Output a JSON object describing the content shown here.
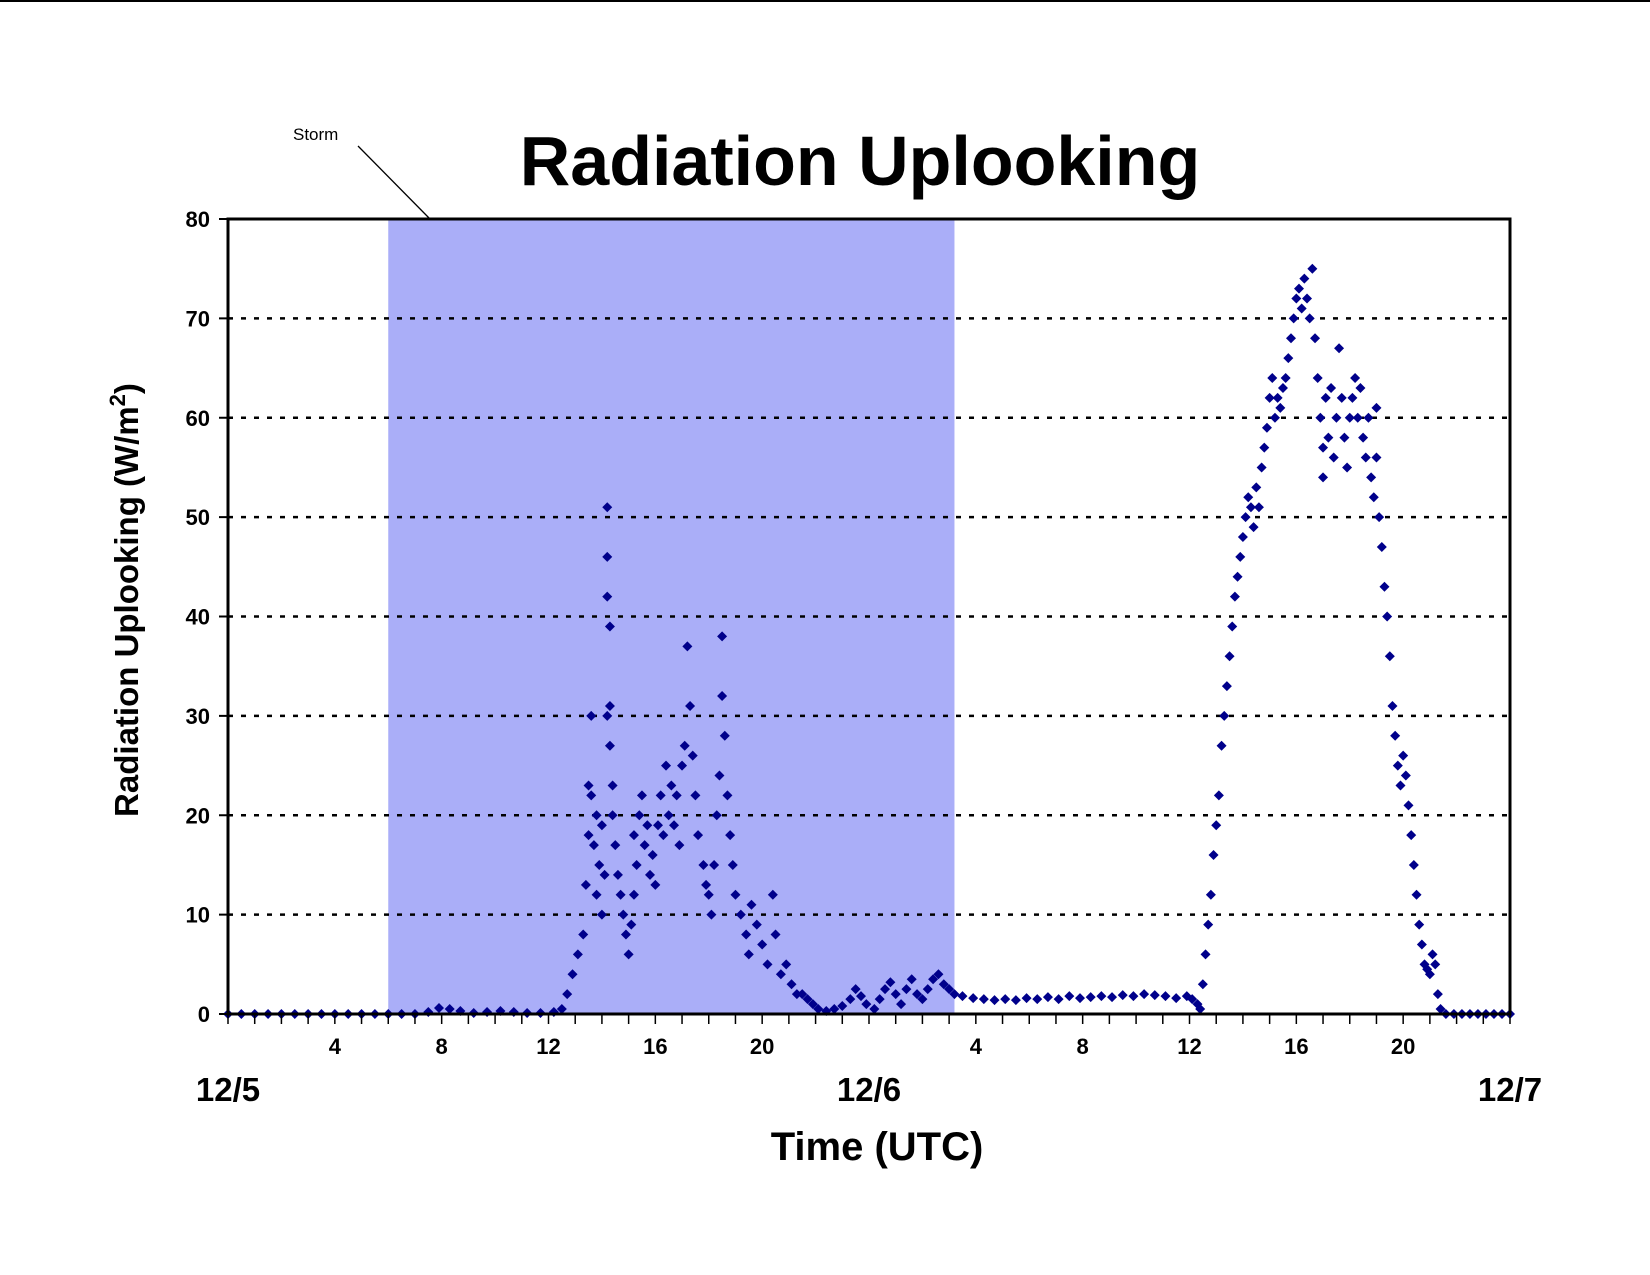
{
  "chart_data": {
    "type": "scatter",
    "title": "Radiation Uplooking",
    "xlabel": "Time (UTC)",
    "ylabel_prefix": "Radiation Uplooking (W/m",
    "ylabel_sup": "2",
    "ylabel_suffix": ")",
    "xlim": [
      0,
      48
    ],
    "ylim": [
      0,
      80
    ],
    "y_ticks": [
      0,
      10,
      20,
      30,
      40,
      50,
      60,
      70,
      80
    ],
    "y_tick_labels": [
      "0",
      "10",
      "20",
      "30",
      "40",
      "50",
      "60",
      "70",
      "80"
    ],
    "gridlines": "horizontal dotted",
    "x_hour_ticks": [
      4,
      8,
      12,
      16,
      20,
      28,
      32,
      36,
      40,
      44
    ],
    "x_hour_labels": [
      "4",
      "8",
      "12",
      "16",
      "20",
      "4",
      "8",
      "12",
      "16",
      "20"
    ],
    "x_date_ticks": [
      0,
      24,
      48
    ],
    "x_date_labels": [
      "12/5",
      "12/6",
      "12/7"
    ],
    "marker_color": "#00008B",
    "storm_band": {
      "label": "Storm",
      "x_start": 6.0,
      "x_end": 27.2,
      "color": "#AAAEF8"
    },
    "series": [
      {
        "marker": "diamond",
        "points": [
          [
            0.0,
            0
          ],
          [
            0.5,
            0
          ],
          [
            1.0,
            0
          ],
          [
            1.5,
            0
          ],
          [
            2.0,
            0
          ],
          [
            2.5,
            0
          ],
          [
            3.0,
            0
          ],
          [
            3.5,
            0
          ],
          [
            4.0,
            0
          ],
          [
            4.5,
            0
          ],
          [
            5.0,
            0
          ],
          [
            5.5,
            0
          ],
          [
            6.0,
            0
          ],
          [
            6.5,
            0
          ],
          [
            7.0,
            0
          ],
          [
            7.5,
            0.2
          ],
          [
            7.9,
            0.6
          ],
          [
            8.3,
            0.5
          ],
          [
            8.7,
            0.3
          ],
          [
            9.2,
            0.1
          ],
          [
            9.7,
            0.2
          ],
          [
            10.2,
            0.3
          ],
          [
            10.7,
            0.2
          ],
          [
            11.2,
            0.1
          ],
          [
            11.7,
            0.1
          ],
          [
            12.2,
            0.2
          ],
          [
            12.5,
            0.5
          ],
          [
            12.7,
            2
          ],
          [
            12.9,
            4
          ],
          [
            13.1,
            6
          ],
          [
            13.3,
            8
          ],
          [
            13.4,
            13
          ],
          [
            13.5,
            18
          ],
          [
            13.5,
            23
          ],
          [
            13.6,
            30
          ],
          [
            13.6,
            22
          ],
          [
            13.7,
            17
          ],
          [
            13.8,
            12
          ],
          [
            13.8,
            20
          ],
          [
            13.9,
            15
          ],
          [
            14.0,
            19
          ],
          [
            14.0,
            10
          ],
          [
            14.1,
            14
          ],
          [
            14.2,
            51
          ],
          [
            14.2,
            46
          ],
          [
            14.2,
            42
          ],
          [
            14.3,
            39
          ],
          [
            14.3,
            31
          ],
          [
            14.2,
            30
          ],
          [
            14.3,
            27
          ],
          [
            14.4,
            23
          ],
          [
            14.4,
            20
          ],
          [
            14.5,
            17
          ],
          [
            14.6,
            14
          ],
          [
            14.7,
            12
          ],
          [
            14.8,
            10
          ],
          [
            14.9,
            8
          ],
          [
            15.0,
            6
          ],
          [
            15.1,
            9
          ],
          [
            15.2,
            12
          ],
          [
            15.2,
            18
          ],
          [
            15.3,
            15
          ],
          [
            15.4,
            20
          ],
          [
            15.5,
            22
          ],
          [
            15.6,
            17
          ],
          [
            15.7,
            19
          ],
          [
            15.8,
            14
          ],
          [
            15.9,
            16
          ],
          [
            16.0,
            13
          ],
          [
            16.1,
            19
          ],
          [
            16.2,
            22
          ],
          [
            16.3,
            18
          ],
          [
            16.4,
            25
          ],
          [
            16.5,
            20
          ],
          [
            16.6,
            23
          ],
          [
            16.7,
            19
          ],
          [
            16.8,
            22
          ],
          [
            16.9,
            17
          ],
          [
            17.0,
            25
          ],
          [
            17.1,
            27
          ],
          [
            17.2,
            37
          ],
          [
            17.3,
            31
          ],
          [
            17.4,
            26
          ],
          [
            17.5,
            22
          ],
          [
            17.6,
            18
          ],
          [
            17.8,
            15
          ],
          [
            17.9,
            13
          ],
          [
            18.0,
            12
          ],
          [
            18.1,
            10
          ],
          [
            18.2,
            15
          ],
          [
            18.3,
            20
          ],
          [
            18.4,
            24
          ],
          [
            18.5,
            38
          ],
          [
            18.5,
            32
          ],
          [
            18.6,
            28
          ],
          [
            18.7,
            22
          ],
          [
            18.8,
            18
          ],
          [
            18.9,
            15
          ],
          [
            19.0,
            12
          ],
          [
            19.2,
            10
          ],
          [
            19.4,
            8
          ],
          [
            19.5,
            6
          ],
          [
            19.6,
            11
          ],
          [
            19.8,
            9
          ],
          [
            20.0,
            7
          ],
          [
            20.2,
            5
          ],
          [
            20.4,
            12
          ],
          [
            20.5,
            8
          ],
          [
            20.7,
            4
          ],
          [
            20.9,
            5
          ],
          [
            21.1,
            3
          ],
          [
            21.3,
            2
          ],
          [
            21.5,
            2
          ],
          [
            21.7,
            1.5
          ],
          [
            21.9,
            1
          ],
          [
            22.1,
            0.5
          ],
          [
            22.4,
            0.3
          ],
          [
            22.7,
            0.5
          ],
          [
            23.0,
            0.8
          ],
          [
            23.3,
            1.5
          ],
          [
            23.5,
            2.5
          ],
          [
            23.7,
            1.8
          ],
          [
            23.9,
            1
          ],
          [
            24.2,
            0.5
          ],
          [
            24.4,
            1.5
          ],
          [
            24.6,
            2.5
          ],
          [
            24.8,
            3.2
          ],
          [
            25.0,
            2
          ],
          [
            25.2,
            1
          ],
          [
            25.4,
            2.5
          ],
          [
            25.6,
            3.5
          ],
          [
            25.8,
            2
          ],
          [
            26.0,
            1.5
          ],
          [
            26.2,
            2.5
          ],
          [
            26.4,
            3.5
          ],
          [
            26.6,
            4
          ],
          [
            26.8,
            3
          ],
          [
            27.0,
            2.5
          ],
          [
            27.2,
            2
          ],
          [
            27.5,
            1.8
          ],
          [
            27.9,
            1.6
          ],
          [
            28.3,
            1.5
          ],
          [
            28.7,
            1.4
          ],
          [
            29.1,
            1.5
          ],
          [
            29.5,
            1.4
          ],
          [
            29.9,
            1.6
          ],
          [
            30.3,
            1.5
          ],
          [
            30.7,
            1.7
          ],
          [
            31.1,
            1.5
          ],
          [
            31.5,
            1.8
          ],
          [
            31.9,
            1.6
          ],
          [
            32.3,
            1.7
          ],
          [
            32.7,
            1.8
          ],
          [
            33.1,
            1.7
          ],
          [
            33.5,
            1.9
          ],
          [
            33.9,
            1.8
          ],
          [
            34.3,
            2
          ],
          [
            34.7,
            1.9
          ],
          [
            35.1,
            1.8
          ],
          [
            35.5,
            1.6
          ],
          [
            35.9,
            1.8
          ],
          [
            36.1,
            1.5
          ],
          [
            36.3,
            1
          ],
          [
            36.4,
            0.5
          ],
          [
            36.5,
            3
          ],
          [
            36.6,
            6
          ],
          [
            36.7,
            9
          ],
          [
            36.8,
            12
          ],
          [
            36.9,
            16
          ],
          [
            37.0,
            19
          ],
          [
            37.1,
            22
          ],
          [
            37.2,
            27
          ],
          [
            37.3,
            30
          ],
          [
            37.4,
            33
          ],
          [
            37.5,
            36
          ],
          [
            37.6,
            39
          ],
          [
            37.7,
            42
          ],
          [
            37.8,
            44
          ],
          [
            37.9,
            46
          ],
          [
            38.0,
            48
          ],
          [
            38.1,
            50
          ],
          [
            38.2,
            52
          ],
          [
            38.3,
            51
          ],
          [
            38.4,
            49
          ],
          [
            38.5,
            53
          ],
          [
            38.6,
            51
          ],
          [
            38.7,
            55
          ],
          [
            38.8,
            57
          ],
          [
            38.9,
            59
          ],
          [
            39.0,
            62
          ],
          [
            39.1,
            64
          ],
          [
            39.2,
            60
          ],
          [
            39.3,
            62
          ],
          [
            39.4,
            61
          ],
          [
            39.5,
            63
          ],
          [
            39.6,
            64
          ],
          [
            39.7,
            66
          ],
          [
            39.8,
            68
          ],
          [
            39.9,
            70
          ],
          [
            40.0,
            72
          ],
          [
            40.1,
            73
          ],
          [
            40.2,
            71
          ],
          [
            40.3,
            74
          ],
          [
            40.4,
            72
          ],
          [
            40.5,
            70
          ],
          [
            40.6,
            75
          ],
          [
            40.7,
            68
          ],
          [
            40.8,
            64
          ],
          [
            40.9,
            60
          ],
          [
            41.0,
            57
          ],
          [
            41.0,
            54
          ],
          [
            41.1,
            62
          ],
          [
            41.2,
            58
          ],
          [
            41.3,
            63
          ],
          [
            41.4,
            56
          ],
          [
            41.5,
            60
          ],
          [
            41.6,
            67
          ],
          [
            41.7,
            62
          ],
          [
            41.8,
            58
          ],
          [
            41.9,
            55
          ],
          [
            42.0,
            60
          ],
          [
            42.1,
            62
          ],
          [
            42.2,
            64
          ],
          [
            42.3,
            60
          ],
          [
            42.4,
            63
          ],
          [
            42.5,
            58
          ],
          [
            42.6,
            56
          ],
          [
            42.7,
            60
          ],
          [
            42.8,
            54
          ],
          [
            42.9,
            52
          ],
          [
            43.0,
            56
          ],
          [
            43.0,
            61
          ],
          [
            43.1,
            50
          ],
          [
            43.2,
            47
          ],
          [
            43.3,
            43
          ],
          [
            43.4,
            40
          ],
          [
            43.5,
            36
          ],
          [
            43.6,
            31
          ],
          [
            43.7,
            28
          ],
          [
            43.8,
            25
          ],
          [
            43.9,
            23
          ],
          [
            44.0,
            26
          ],
          [
            44.1,
            24
          ],
          [
            44.2,
            21
          ],
          [
            44.3,
            18
          ],
          [
            44.4,
            15
          ],
          [
            44.5,
            12
          ],
          [
            44.6,
            9
          ],
          [
            44.7,
            7
          ],
          [
            44.8,
            5
          ],
          [
            44.9,
            4.5
          ],
          [
            45.0,
            4
          ],
          [
            45.1,
            6
          ],
          [
            45.2,
            5
          ],
          [
            45.3,
            2
          ],
          [
            45.4,
            0.5
          ],
          [
            45.6,
            0
          ],
          [
            45.9,
            0
          ],
          [
            46.2,
            0
          ],
          [
            46.5,
            0
          ],
          [
            46.8,
            0
          ],
          [
            47.1,
            0
          ],
          [
            47.4,
            0
          ],
          [
            47.7,
            0
          ],
          [
            48.0,
            0
          ]
        ]
      }
    ]
  }
}
